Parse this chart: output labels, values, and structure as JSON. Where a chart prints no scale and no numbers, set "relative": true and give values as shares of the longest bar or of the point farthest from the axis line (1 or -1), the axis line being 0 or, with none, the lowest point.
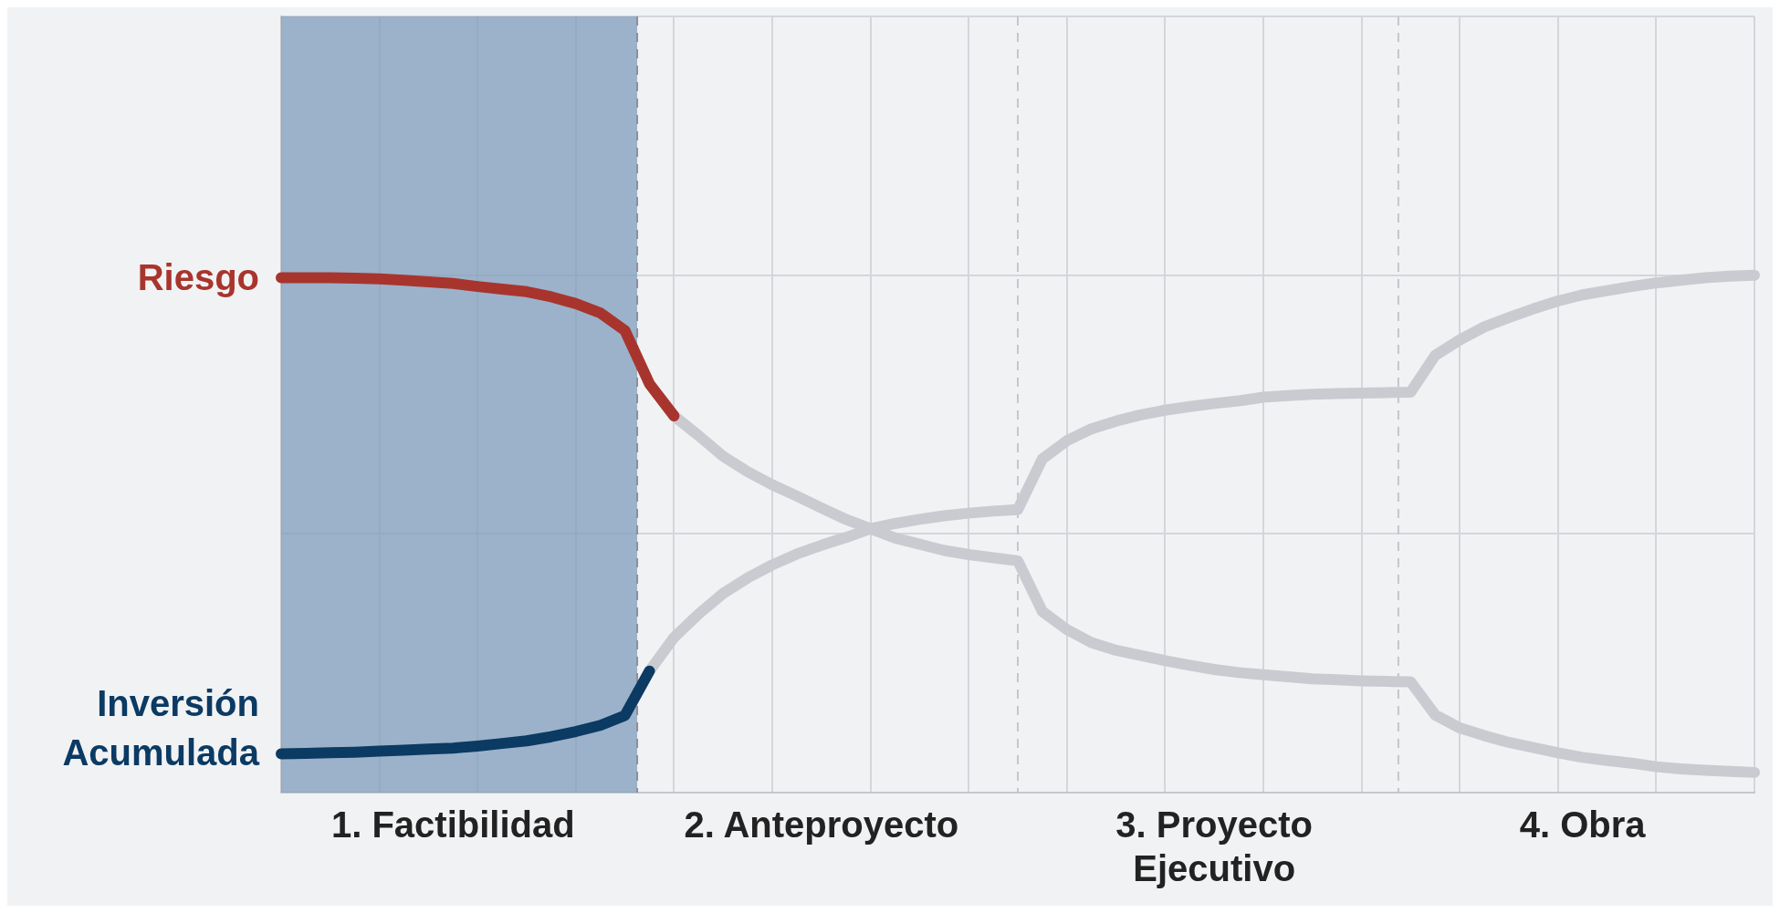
{
  "chart_data": {
    "type": "line",
    "relative": true,
    "legend": false,
    "grid": true,
    "marker": "none",
    "line_style": "solid",
    "categories": [
      null,
      null,
      null,
      null,
      null,
      null,
      null,
      "1. Factibilidad",
      null,
      null,
      null,
      null,
      null,
      null,
      null,
      null,
      null,
      null,
      null,
      null,
      null,
      null,
      "2. Anteproyecto",
      null,
      null,
      null,
      null,
      null,
      null,
      null,
      null,
      null,
      null,
      null,
      null,
      null,
      null,
      null,
      "3. Proyecto Ejecutivo",
      null,
      null,
      null,
      null,
      null,
      null,
      null,
      null,
      null,
      null,
      null,
      null,
      null,
      null,
      "4. Obra",
      null,
      null,
      null,
      null,
      null,
      null,
      null
    ],
    "series": [
      {
        "name": "Riesgo",
        "color": "#a8352d",
        "values": [
          0.995,
          0.995,
          0.995,
          0.994,
          0.993,
          0.99,
          0.987,
          0.984,
          0.978,
          0.973,
          0.968,
          0.958,
          0.945,
          0.927,
          0.893,
          0.79,
          0.728,
          null,
          null,
          null,
          null,
          null,
          null,
          null,
          null,
          null,
          null,
          null,
          null,
          null,
          null,
          null,
          null,
          null,
          null,
          null,
          null,
          null,
          null,
          null,
          null,
          null,
          null,
          null,
          null,
          null,
          null,
          null,
          null,
          null,
          null,
          null,
          null,
          null,
          null,
          null,
          null,
          null,
          null,
          null,
          null
        ]
      },
      {
        "color": "#c9cbd0",
        "values": [
          null,
          null,
          null,
          null,
          null,
          null,
          null,
          null,
          null,
          null,
          null,
          null,
          null,
          null,
          null,
          null,
          0.728,
          0.69,
          0.65,
          0.62,
          0.595,
          0.573,
          0.55,
          0.528,
          0.51,
          0.492,
          0.48,
          0.468,
          0.46,
          0.454,
          0.448,
          0.35,
          0.315,
          0.29,
          0.275,
          0.265,
          0.255,
          0.246,
          0.238,
          0.232,
          0.228,
          0.224,
          0.22,
          0.218,
          0.216,
          0.215,
          0.214,
          0.15,
          0.125,
          0.11,
          0.097,
          0.087,
          0.077,
          0.068,
          0.062,
          0.057,
          0.05,
          0.046,
          0.043,
          0.041,
          0.039
        ]
      },
      {
        "name": "Inversión Acumulada",
        "color": "#0b3a63",
        "values": [
          0.075,
          0.076,
          0.077,
          0.078,
          0.08,
          0.082,
          0.084,
          0.086,
          0.09,
          0.095,
          0.1,
          0.108,
          0.118,
          0.13,
          0.149,
          0.235,
          null,
          null,
          null,
          null,
          null,
          null,
          null,
          null,
          null,
          null,
          null,
          null,
          null,
          null,
          null,
          null,
          null,
          null,
          null,
          null,
          null,
          null,
          null,
          null,
          null,
          null,
          null,
          null,
          null,
          null,
          null,
          null,
          null,
          null,
          null,
          null,
          null,
          null,
          null,
          null,
          null,
          null,
          null,
          null,
          null
        ]
      },
      {
        "color": "#c9cbd0",
        "values": [
          null,
          null,
          null,
          null,
          null,
          null,
          null,
          null,
          null,
          null,
          null,
          null,
          null,
          null,
          null,
          0.235,
          0.3,
          0.345,
          0.385,
          0.415,
          0.44,
          0.461,
          0.478,
          0.493,
          0.51,
          0.52,
          0.528,
          0.535,
          0.54,
          0.544,
          0.547,
          0.645,
          0.68,
          0.703,
          0.718,
          0.73,
          0.739,
          0.746,
          0.752,
          0.757,
          0.764,
          0.767,
          0.77,
          0.771,
          0.772,
          0.773,
          0.774,
          0.845,
          0.875,
          0.9,
          0.918,
          0.935,
          0.95,
          0.962,
          0.97,
          0.978,
          0.985,
          0.99,
          0.995,
          0.998,
          1
        ]
      }
    ]
  }
}
